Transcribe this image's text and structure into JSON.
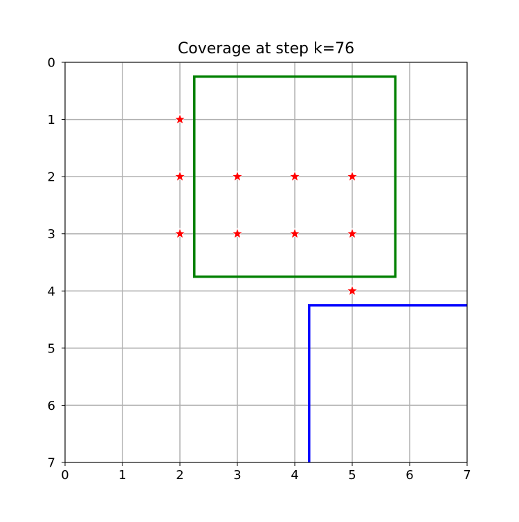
{
  "chart_data": {
    "type": "scatter",
    "title": "Coverage at step k=76",
    "xlabel": "",
    "ylabel": "",
    "xlim": [
      0,
      7
    ],
    "ylim": [
      7,
      0
    ],
    "y_inverted": true,
    "grid": true,
    "x_ticks": [
      "0",
      "1",
      "2",
      "3",
      "4",
      "5",
      "6",
      "7"
    ],
    "y_ticks": [
      "0",
      "1",
      "2",
      "3",
      "4",
      "5",
      "6",
      "7"
    ],
    "series": [
      {
        "marker": "star",
        "color": "#ff0000",
        "edge_color": "#ffffff",
        "points": [
          {
            "x": 2,
            "y": 1
          },
          {
            "x": 2,
            "y": 2
          },
          {
            "x": 3,
            "y": 2
          },
          {
            "x": 4,
            "y": 2
          },
          {
            "x": 5,
            "y": 2
          },
          {
            "x": 2,
            "y": 3
          },
          {
            "x": 3,
            "y": 3
          },
          {
            "x": 4,
            "y": 3
          },
          {
            "x": 5,
            "y": 3
          },
          {
            "x": 5,
            "y": 4
          }
        ]
      }
    ],
    "rectangles": [
      {
        "color": "#008000",
        "x0": 2.25,
        "y0": 0.25,
        "x1": 5.75,
        "y1": 3.75
      },
      {
        "color": "#0000ff",
        "x0": 4.25,
        "y0": 4.25,
        "x1": 7.25,
        "y1": 7.25
      }
    ],
    "colors": {
      "grid": "#b0b0b0",
      "axes": "#000000"
    }
  }
}
